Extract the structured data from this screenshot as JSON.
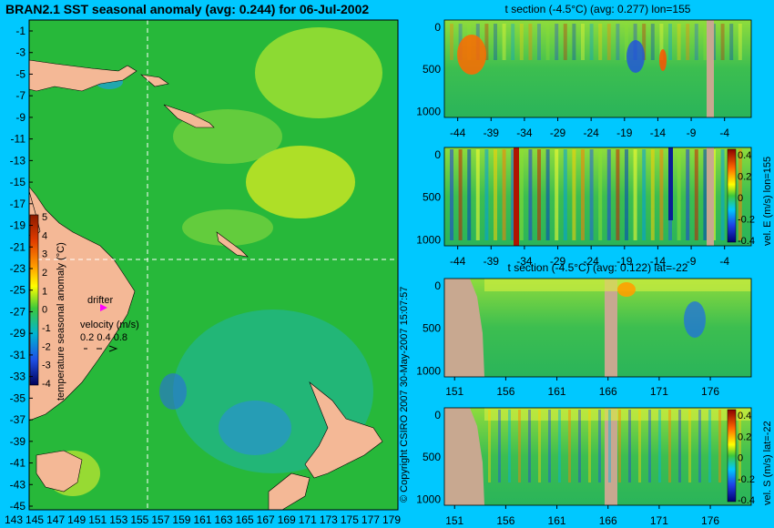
{
  "header": {
    "main_title": "BRAN2.1 SST seasonal anomaly (avg: 0.244) for 06-Jul-2002",
    "copyright": "© Copyright CSIRO 2007  30-May-2007 15:07:57"
  },
  "map": {
    "lat_ticks": [
      "-1",
      "-3",
      "-5",
      "-7",
      "-9",
      "-11",
      "-13",
      "-15",
      "-17",
      "-19",
      "-21",
      "-23",
      "-25",
      "-27",
      "-29",
      "-31",
      "-33",
      "-35",
      "-37",
      "-39",
      "-41",
      "-43",
      "-45"
    ],
    "lon_ticks": [
      "143",
      "145",
      "147",
      "149",
      "151",
      "153",
      "155",
      "157",
      "159",
      "161",
      "163",
      "165",
      "167",
      "169",
      "171",
      "173",
      "175",
      "177",
      "179"
    ],
    "colorbar_label": "temperature seasonal anomaly (°C)",
    "colorbar_ticks": [
      "5",
      "4",
      "3",
      "2",
      "1",
      "0",
      "-1",
      "-2",
      "-3",
      "-4"
    ],
    "drifter_label": "drifter",
    "velocity_label": "velocity (m/s)",
    "velocity_ticks": "0.2 0.4 0.8",
    "colors": {
      "land": "#f4b896",
      "ocean": "#27b83a",
      "crosshair": "#ffffff",
      "drifter": "#ff00ff"
    }
  },
  "panels": [
    {
      "title": "t section (-4.5°C) (avg: 0.277) lon=155",
      "x_ticks": [
        "-44",
        "-39",
        "-34",
        "-29",
        "-24",
        "-19",
        "-14",
        "-9",
        "-4"
      ],
      "y_ticks": [
        "0",
        "500",
        "1000"
      ],
      "side_label": ""
    },
    {
      "title": "",
      "x_ticks": [
        "-44",
        "-39",
        "-34",
        "-29",
        "-24",
        "-19",
        "-14",
        "-9",
        "-4"
      ],
      "y_ticks": [
        "0",
        "500",
        "1000"
      ],
      "side_label": "vel. E (m/s) lon=155"
    },
    {
      "title": "t section (-4.5°C) (avg: 0.122) lat=-22",
      "x_ticks": [
        "151",
        "156",
        "161",
        "166",
        "171",
        "176"
      ],
      "y_ticks": [
        "0",
        "500",
        "1000"
      ],
      "side_label": ""
    },
    {
      "title": "",
      "x_ticks": [
        "151",
        "156",
        "161",
        "166",
        "171",
        "176"
      ],
      "y_ticks": [
        "0",
        "500",
        "1000"
      ],
      "side_label": "vel. S (m/s) lat=-22"
    }
  ],
  "vel_colorbar_ticks": [
    "0.4",
    "0.2",
    "0",
    "-0.2",
    "-0.4"
  ],
  "chart_data": [
    {
      "type": "heatmap",
      "title": "BRAN2.1 SST seasonal anomaly (avg: 0.244) for 06-Jul-2002",
      "x_ticks": [
        "143",
        "145",
        "147",
        "149",
        "151",
        "153",
        "155",
        "157",
        "159",
        "161",
        "163",
        "165",
        "167",
        "169",
        "171",
        "173",
        "175",
        "177",
        "179"
      ],
      "y_ticks": [
        "-1",
        "-3",
        "-5",
        "-7",
        "-9",
        "-11",
        "-13",
        "-15",
        "-17",
        "-19",
        "-21",
        "-23",
        "-25",
        "-27",
        "-29",
        "-31",
        "-33",
        "-35",
        "-37",
        "-39",
        "-41",
        "-43",
        "-45"
      ],
      "colorbar_range": [
        -4,
        5
      ],
      "average": 0.244
    },
    {
      "type": "heatmap",
      "title": "t section (-4.5°C) (avg: 0.277) lon=155",
      "average": 0.277,
      "xlim": [
        -46,
        0
      ],
      "ylim": [
        1050,
        0
      ]
    },
    {
      "type": "heatmap",
      "title": "",
      "colorbar_label": "vel. E (m/s) lon=155",
      "colorbar_range": [
        -0.4,
        0.4
      ],
      "xlim": [
        -46,
        0
      ],
      "ylim": [
        1050,
        0
      ]
    },
    {
      "type": "heatmap",
      "title": "t section (-4.5°C) (avg: 0.122) lat=-22",
      "average": 0.122,
      "xlim": [
        150,
        180
      ],
      "ylim": [
        1050,
        0
      ]
    },
    {
      "type": "heatmap",
      "title": "",
      "colorbar_label": "vel. S (m/s) lat=-22",
      "colorbar_range": [
        -0.4,
        0.4
      ],
      "xlim": [
        150,
        180
      ],
      "ylim": [
        1050,
        0
      ]
    }
  ]
}
